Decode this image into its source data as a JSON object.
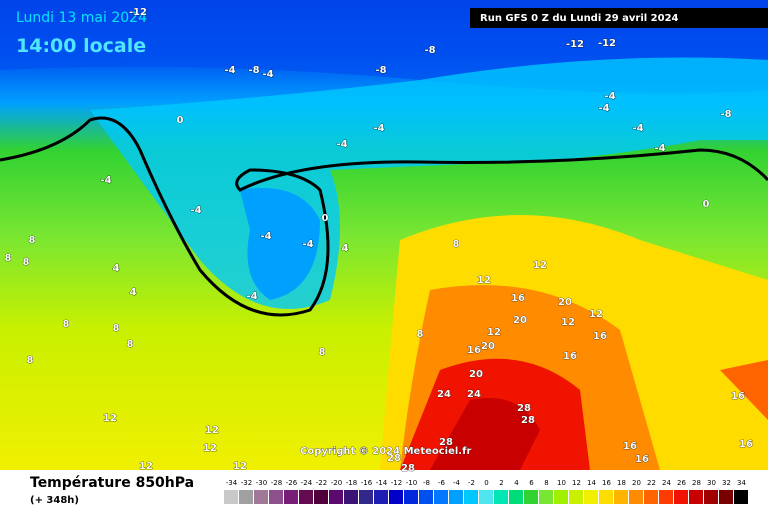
{
  "header": {
    "date": "Lundi 13 mai 2024",
    "time": "14:00 locale",
    "run": "Run GFS 0 Z du Lundi 29 avril 2024"
  },
  "copyright": "Copyright © 2024 Meteociel.fr",
  "footer": {
    "title": "Température 850hPa",
    "lead": "(+ 348h)"
  },
  "legend": {
    "values": [
      -34,
      -32,
      -30,
      -28,
      -26,
      -24,
      -22,
      -20,
      -18,
      -16,
      -14,
      -12,
      -10,
      -8,
      -6,
      -4,
      -2,
      0,
      2,
      4,
      6,
      8,
      10,
      12,
      14,
      16,
      18,
      20,
      22,
      24,
      26,
      28,
      30,
      32,
      34
    ],
    "colors": [
      "#c8c8c8",
      "#a0a0a0",
      "#a07898",
      "#8c508c",
      "#781e78",
      "#640a50",
      "#50003c",
      "#5a0a6e",
      "#3c1478",
      "#32288c",
      "#1e1eb4",
      "#0000c8",
      "#0028dc",
      "#0050f0",
      "#0078ff",
      "#00a0ff",
      "#00c8ff",
      "#50e6f0",
      "#00e6b4",
      "#00dc78",
      "#32d232",
      "#78e632",
      "#a0f000",
      "#c8f000",
      "#f0f000",
      "#ffdc00",
      "#ffb400",
      "#ff8c00",
      "#ff6400",
      "#ff3c00",
      "#f01400",
      "#c80000",
      "#a00000",
      "#780000",
      "#000000"
    ]
  },
  "map_labels": [
    -12,
    -8,
    -12,
    -12,
    -4,
    -8,
    -4,
    -8,
    0,
    -4,
    -4,
    -4,
    -4,
    -8,
    -4,
    -4,
    0,
    -4,
    -4,
    -4,
    -4,
    0,
    4,
    -4,
    4,
    4,
    8,
    8,
    8,
    8,
    8,
    8,
    8,
    8,
    8,
    8,
    12,
    12,
    16,
    20,
    20,
    12,
    12,
    16,
    12,
    20,
    16,
    16,
    20,
    24,
    24,
    28,
    28,
    28,
    28,
    28,
    12,
    12,
    12,
    12,
    12,
    16,
    16,
    16,
    16
  ]
}
